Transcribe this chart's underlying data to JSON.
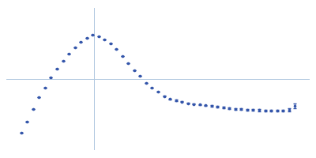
{
  "background_color": "#ffffff",
  "dot_color": "#3355aa",
  "axis_color": "#b0c8e0",
  "points": [
    [
      0.05,
      0.12
    ],
    [
      0.07,
      0.2
    ],
    [
      0.09,
      0.29
    ],
    [
      0.11,
      0.37
    ],
    [
      0.13,
      0.44
    ],
    [
      0.15,
      0.51
    ],
    [
      0.17,
      0.57
    ],
    [
      0.19,
      0.63
    ],
    [
      0.21,
      0.68
    ],
    [
      0.23,
      0.72
    ],
    [
      0.25,
      0.76
    ],
    [
      0.27,
      0.79
    ],
    [
      0.29,
      0.81
    ],
    [
      0.31,
      0.8
    ],
    [
      0.33,
      0.78
    ],
    [
      0.35,
      0.75
    ],
    [
      0.37,
      0.71
    ],
    [
      0.39,
      0.66
    ],
    [
      0.41,
      0.61
    ],
    [
      0.43,
      0.56
    ],
    [
      0.45,
      0.52
    ],
    [
      0.47,
      0.47
    ],
    [
      0.49,
      0.44
    ],
    [
      0.51,
      0.41
    ],
    [
      0.53,
      0.38
    ],
    [
      0.55,
      0.36
    ],
    [
      0.57,
      0.35
    ],
    [
      0.59,
      0.34
    ],
    [
      0.61,
      0.33
    ],
    [
      0.63,
      0.325
    ],
    [
      0.65,
      0.32
    ],
    [
      0.67,
      0.315
    ],
    [
      0.69,
      0.31
    ],
    [
      0.71,
      0.305
    ],
    [
      0.73,
      0.3
    ],
    [
      0.75,
      0.295
    ],
    [
      0.77,
      0.29
    ],
    [
      0.79,
      0.288
    ],
    [
      0.81,
      0.285
    ],
    [
      0.83,
      0.283
    ],
    [
      0.85,
      0.281
    ],
    [
      0.87,
      0.28
    ],
    [
      0.89,
      0.279
    ],
    [
      0.91,
      0.278
    ],
    [
      0.93,
      0.277
    ],
    [
      0.95,
      0.285
    ],
    [
      0.97,
      0.31
    ]
  ],
  "error_bars": [
    0.0,
    0.0,
    0.0,
    0.0,
    0.0,
    0.0,
    0.0,
    0.0,
    0.0,
    0.0,
    0.0,
    0.0,
    0.0,
    0.0,
    0.0,
    0.0,
    0.0,
    0.0,
    0.0,
    0.0,
    0.0,
    0.0,
    0.0,
    0.0,
    0.003,
    0.003,
    0.003,
    0.003,
    0.004,
    0.004,
    0.004,
    0.004,
    0.005,
    0.005,
    0.005,
    0.005,
    0.005,
    0.006,
    0.006,
    0.006,
    0.006,
    0.006,
    0.006,
    0.006,
    0.006,
    0.01,
    0.018
  ],
  "xlim": [
    0.0,
    1.02
  ],
  "ylim": [
    0.0,
    1.0
  ],
  "vline_x": 0.295,
  "hline_y": 0.5,
  "vline_color": "#b0c8e0",
  "hline_color": "#b0c8e0"
}
